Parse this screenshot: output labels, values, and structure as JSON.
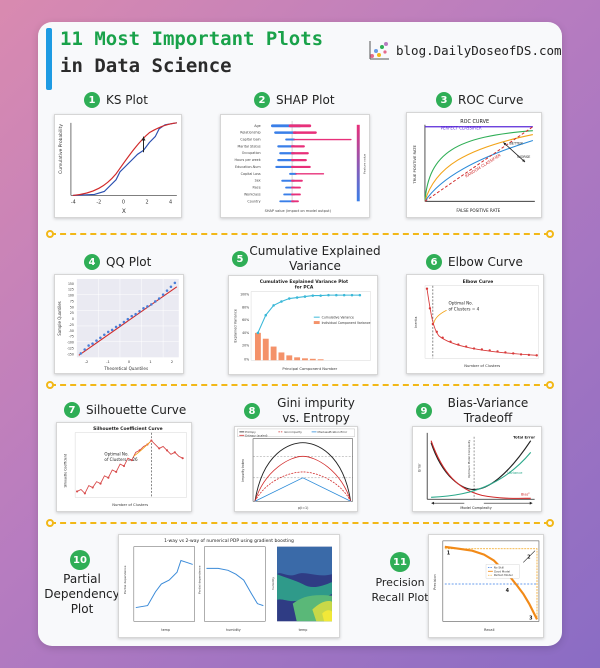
{
  "header": {
    "title_line1": "11 Most Important Plots",
    "title_line2": "in Data Science",
    "blog_text": "blog.DailyDoseofDS.com",
    "accent_color": "#1e9be3",
    "title_color": "#19a24a"
  },
  "plots": [
    {
      "number": "1",
      "label": "KS Plot",
      "ylabel": "Cumulative Probability",
      "xlabel": "X",
      "ticks": [
        "-4",
        "-2",
        "0",
        "2",
        "4"
      ]
    },
    {
      "number": "2",
      "label": "SHAP Plot",
      "xlabel": "SHAP value (impact on model output)",
      "features": [
        "Age",
        "Relationship",
        "Capital Gain",
        "Marital Status",
        "Occupation",
        "Hours per week",
        "Education-Num",
        "Capital Loss",
        "Sex",
        "Race",
        "Workclass",
        "Country"
      ],
      "colorbar_label": "Feature value"
    },
    {
      "number": "3",
      "label": "ROC Curve",
      "title": "ROC CURVE",
      "perfect": "PERFECT CLASSIFIER",
      "better": "BETTER",
      "worse": "WORSE",
      "random": "RANDOM CLASSIFIER",
      "xlabel": "FALSE POSITIVE RATE",
      "ylabel": "TRUE POSITIVE RATE"
    },
    {
      "number": "4",
      "label": "QQ Plot",
      "ylabel": "Sample Quantiles",
      "xlabel": "Theoretical Quantiles",
      "yticks": [
        "150",
        "125",
        "100",
        "75",
        "50",
        "25",
        "0",
        "-25",
        "-50",
        "-75",
        "-100",
        "-125",
        "-150"
      ],
      "xticks": [
        "-2",
        "-1",
        "0",
        "1",
        "2"
      ]
    },
    {
      "number": "5",
      "label_line1": "Cumulative Explained",
      "label_line2": "Variance",
      "title_line1": "Cumulative Explained Variance Plot",
      "title_line2": "for PCA",
      "legend1": "Cumulative Variance",
      "legend2": "Individual Component Variance",
      "xlabel": "Principal Component Number",
      "ylabel": "Explained Variance",
      "yticks": [
        "100%",
        "80%",
        "60%",
        "40%",
        "20%",
        "0%"
      ]
    },
    {
      "number": "6",
      "label": "Elbow Curve",
      "title": "Elbow Curve",
      "annotation_line1": "Optimal No.",
      "annotation_line2": "of Clusters = 4",
      "xlabel": "Number of Clusters",
      "ylabel": "Inertia"
    },
    {
      "number": "7",
      "label": "Silhouette Curve",
      "title": "Silhouette Coefficient Curve",
      "annotation_line1": "Optimal No.",
      "annotation_line2": "of Clusters = 26",
      "xlabel": "Number of Clusters",
      "ylabel": "Silhouette Coefficient"
    },
    {
      "number": "8",
      "label_line1": "Gini impurity",
      "label_line2": "vs. Entropy",
      "legend": [
        "Entropy",
        "Gini impurity",
        "Misclassification Error",
        "Entropy (scaled)"
      ],
      "xlabel": "p(i=1)",
      "ylabel": "Impurity index"
    },
    {
      "number": "9",
      "label_line1": "Bias-Variance",
      "label_line2": "Tradeoff",
      "total_error": "Total Error",
      "variance": "Variance",
      "bias": "Bias²",
      "optimum": "Optimum Model Complexity",
      "xlabel": "Model Complexity",
      "ylabel": "Error"
    },
    {
      "number": "10",
      "label_line1": "Partial",
      "label_line2": "Dependency",
      "label_line3": "Plot",
      "title": "1-way vs 2-way of numerical PDP using gradient boosting",
      "ylabel": "Partial dependence",
      "xlabel1": "temp",
      "xlabel2": "humidity",
      "xlabel3": "temp",
      "ylabel3": "humidity"
    },
    {
      "number": "11",
      "label_line1": "Precision",
      "label_line2": "Recall Plot",
      "legend": [
        "No Skill",
        "Good Model",
        "Perfect Model"
      ],
      "xlabel": "Recall",
      "ylabel": "Precision",
      "markers": [
        "1",
        "2",
        "3",
        "4"
      ]
    }
  ],
  "colors": {
    "number_badge": "#2fae56",
    "separator": "#f2b818"
  }
}
